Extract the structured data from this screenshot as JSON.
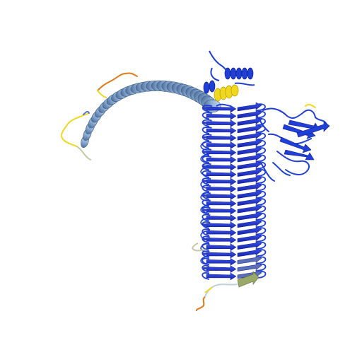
{
  "scene": {
    "subject": "protein-ribbon-structure",
    "background": "#ffffff",
    "colors": {
      "very_high": "#1f3fd6",
      "high": "#4f74d9",
      "confident": "#a9c8e6",
      "medium": "#bccfe0",
      "low": "#f0d820",
      "very_low": "#e07a1a",
      "strand_low": "#9aa86a"
    },
    "domains": [
      "coiled-coil-helix",
      "beta-solenoid",
      "side-domain",
      "cap-helices",
      "n-terminal-tail",
      "c-terminal-tail"
    ]
  }
}
